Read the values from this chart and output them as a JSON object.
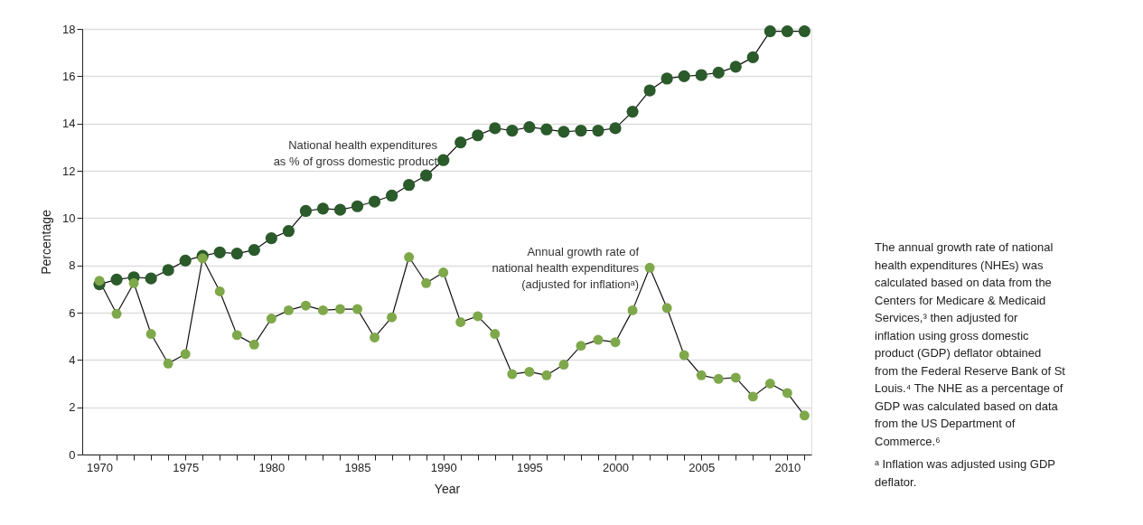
{
  "chart_data": {
    "type": "line",
    "xlabel": "Year",
    "ylabel": "Percentage",
    "x": [
      1970,
      1971,
      1972,
      1973,
      1974,
      1975,
      1976,
      1977,
      1978,
      1979,
      1980,
      1981,
      1982,
      1983,
      1984,
      1985,
      1986,
      1987,
      1988,
      1989,
      1990,
      1991,
      1992,
      1993,
      1994,
      1995,
      1996,
      1997,
      1998,
      1999,
      2000,
      2001,
      2002,
      2003,
      2004,
      2005,
      2006,
      2007,
      2008,
      2009,
      2010,
      2011
    ],
    "series": [
      {
        "name": "National health expenditures\nas % of gross domestic product",
        "color": "#2b5a2b",
        "values": [
          7.2,
          7.4,
          7.5,
          7.45,
          7.8,
          8.2,
          8.4,
          8.55,
          8.5,
          8.65,
          9.15,
          9.45,
          10.3,
          10.4,
          10.35,
          10.5,
          10.7,
          10.95,
          11.4,
          11.8,
          12.45,
          13.2,
          13.5,
          13.8,
          13.7,
          13.85,
          13.75,
          13.65,
          13.7,
          13.7,
          13.8,
          14.5,
          15.4,
          15.9,
          16.0,
          16.05,
          16.15,
          16.4,
          16.8,
          17.9,
          17.9,
          17.9
        ]
      },
      {
        "name": "Annual growth rate of\nnational health expenditures\n(adjusted for inflationᵃ)",
        "color": "#7ea84a",
        "values": [
          7.35,
          5.95,
          7.25,
          5.1,
          3.85,
          4.25,
          8.3,
          6.9,
          5.05,
          4.65,
          5.75,
          6.1,
          6.3,
          6.1,
          6.15,
          6.15,
          4.95,
          5.8,
          8.35,
          7.25,
          7.7,
          5.6,
          5.85,
          5.1,
          3.4,
          3.5,
          3.35,
          3.8,
          4.6,
          4.85,
          4.75,
          6.1,
          7.9,
          6.2,
          4.2,
          3.35,
          3.2,
          3.25,
          2.45,
          3.0,
          2.6,
          1.65
        ]
      }
    ],
    "xlim": [
      1969,
      2011.4
    ],
    "xticks": [
      1970,
      {
        "value": 1971,
        "label": null
      },
      {
        "value": 1972,
        "label": null
      },
      {
        "value": 1973,
        "label": null
      },
      {
        "value": 1974,
        "label": null
      },
      1975,
      {
        "value": 1976,
        "label": null
      },
      {
        "value": 1977,
        "label": null
      },
      {
        "value": 1978,
        "label": null
      },
      {
        "value": 1979,
        "label": null
      },
      1980,
      {
        "value": 1981,
        "label": null
      },
      {
        "value": 1982,
        "label": null
      },
      {
        "value": 1983,
        "label": null
      },
      {
        "value": 1984,
        "label": null
      },
      1985,
      {
        "value": 1986,
        "label": null
      },
      {
        "value": 1987,
        "label": null
      },
      {
        "value": 1988,
        "label": null
      },
      {
        "value": 1989,
        "label": null
      },
      1990,
      {
        "value": 1991,
        "label": null
      },
      {
        "value": 1992,
        "label": null
      },
      {
        "value": 1993,
        "label": null
      },
      {
        "value": 1994,
        "label": null
      },
      1995,
      {
        "value": 1996,
        "label": null
      },
      {
        "value": 1997,
        "label": null
      },
      {
        "value": 1998,
        "label": null
      },
      {
        "value": 1999,
        "label": null
      },
      2000,
      {
        "value": 2001,
        "label": null
      },
      {
        "value": 2002,
        "label": null
      },
      {
        "value": 2003,
        "label": null
      },
      {
        "value": 2004,
        "label": null
      },
      2005,
      {
        "value": 2006,
        "label": null
      },
      {
        "value": 2007,
        "label": null
      },
      {
        "value": 2008,
        "label": null
      },
      {
        "value": 2009,
        "label": null
      },
      2010,
      {
        "value": 2011,
        "label": null
      }
    ],
    "ylim": [
      0,
      18
    ],
    "yticks": [
      0,
      2,
      4,
      6,
      8,
      10,
      12,
      14,
      16,
      18
    ],
    "grid": "y",
    "legend": false,
    "marker": "circle",
    "line_style": "solid",
    "annotations": [
      "The annual growth rate of national health expenditures (NHEs) was calculated based on data from the Centers for Medicare & Medicaid Services,³ then adjusted for inflation using gross domestic product (GDP) deflator obtained from the Federal Reserve Bank of St Louis.⁴ The NHE as a percentage of GDP was calculated based on data from the US Department of Commerce.⁶",
      "ᵃ Inflation was adjusted using GDP deflator."
    ]
  }
}
